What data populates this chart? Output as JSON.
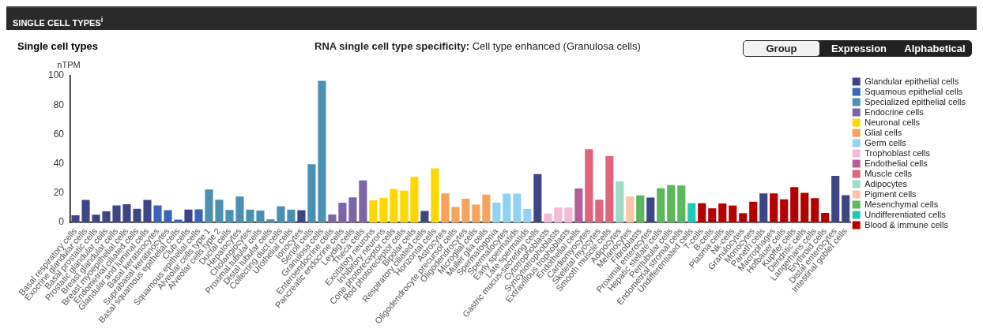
{
  "chart_data": {
    "type": "bar",
    "title": "SINGLE CELL TYPES$^{i}$",
    "subtitle": "RNA single cell type specificity: Cell type enhanced (Granulosa cells)",
    "ylabel": "nTPM",
    "annotations": [
      "Single cell types",
      "Group",
      "Expression",
      "Alphabetical"
    ],
    "categories": [
      "Basal respiratory cells",
      "Exocrine glandular cells",
      "Basal prostatic cells",
      "Prostatic glandular cells",
      "Breast glandular cells",
      "Breast myoepithelial cells",
      "Endometrial ciliated cells",
      "Glandular and luminal cells",
      "Basal keratinocytes",
      "Suprabasal keratinocytes",
      "Basal squamous epithelial cells",
      "Club cells",
      "Squamous epithelial cells",
      "Alveolar cells type 1",
      "Alveolar cells type 2",
      "Ductal cells",
      "Hepatocytes",
      "Cholangiocytes",
      "Proximal tubular cells",
      "Distal tubular cells",
      "Collecting duct cells",
      "Urothelial cells",
      "Ionocytes",
      "Sertoli cells",
      "Granulosa cells",
      "Enteroendocrine cells",
      "Pancreatic endocrine cells",
      "Leydig cells",
      "Theca cells",
      "Excitatory neurons",
      "Inhibitory neurons",
      "Cone photoreceptor cells",
      "Rod photoreceptor cells",
      "Bipolar cells",
      "Respiratory ciliated cells",
      "Horizontal cells",
      "Astrocytes",
      "Oligodendrocyte precursor cells",
      "Oligodendrocytes",
      "Microglial cells",
      "Muller glia cells",
      "Spermatogonia",
      "Spermatocytes",
      "Early spermatids",
      "Late spermatids",
      "Gastric mucus-secreting cells",
      "Cytotrophoblasts",
      "Syncytiotrophoblasts",
      "Extravillous trophoblasts",
      "Endothelial cells",
      "Cardiomyocytes",
      "Skeletal myocytes",
      "Smooth muscle cells",
      "Adipocytes",
      "Melanocytes",
      "Fibroblasts",
      "Proximal enterocytes",
      "Hepatic stellate cells",
      "Peritubular cells",
      "Endometrial stromal cells",
      "Undifferentiated cells",
      "T-cells",
      "B-cells",
      "Plasma cells",
      "Nk-cells",
      "Granulocytes",
      "Monocytes",
      "Paneth cells",
      "Macrophages",
      "Hofbauer cells",
      "Kupffer cells",
      "Dendritic cells",
      "Langerhans cells",
      "Erythroid cells",
      "Distal enterocytes",
      "Intestinal goblet cells"
    ],
    "series": [
      {
        "name": "Glandular epithelial cells",
        "color": "#3d4585",
        "values": [
          4.8,
          15.3,
          5.2,
          7.6,
          11.6,
          12.4,
          9.3,
          15.3,
          null,
          null,
          null,
          8.7,
          null,
          null,
          null,
          null,
          null,
          null,
          null,
          null,
          null,
          null,
          8.3,
          null,
          null,
          null,
          null,
          null,
          null,
          null,
          null,
          null,
          null,
          null,
          7.8,
          null,
          null,
          null,
          null,
          null,
          null,
          null,
          null,
          null,
          null,
          32.9,
          null,
          null,
          null,
          null,
          null,
          null,
          null,
          null,
          null,
          null,
          17.0,
          null,
          null,
          null,
          null,
          null,
          null,
          null,
          null,
          null,
          null,
          19.8,
          null,
          null,
          null,
          null,
          null,
          null,
          31.7,
          18.6
        ]
      },
      {
        "name": "Squamous epithelial cells",
        "color": "#3a64b8",
        "values": [
          null,
          null,
          null,
          null,
          null,
          null,
          null,
          null,
          11.6,
          8.3,
          1.9,
          null,
          8.9,
          null,
          null,
          null,
          null,
          null,
          null,
          null,
          null,
          null,
          null,
          null,
          null,
          null,
          null,
          null,
          null,
          null,
          null,
          null,
          null,
          null,
          null,
          null,
          null,
          null,
          null,
          null,
          null,
          null,
          null,
          null,
          null,
          null,
          null,
          null,
          null,
          null,
          null,
          null,
          null,
          null,
          null,
          null,
          null,
          null,
          null,
          null,
          null,
          null,
          null,
          null,
          null,
          null,
          null,
          null,
          null,
          null,
          null,
          null,
          null,
          null,
          null,
          null
        ]
      },
      {
        "name": "Specialized epithelial cells",
        "color": "#4a90b2",
        "values": [
          null,
          null,
          null,
          null,
          null,
          null,
          null,
          null,
          null,
          null,
          null,
          null,
          null,
          22.5,
          15.5,
          8.5,
          17.6,
          8.7,
          8.1,
          2.1,
          11.0,
          8.7,
          null,
          39.7,
          96.5,
          null,
          null,
          null,
          null,
          null,
          null,
          null,
          null,
          null,
          null,
          null,
          null,
          null,
          null,
          null,
          null,
          null,
          null,
          null,
          null,
          null,
          null,
          null,
          null,
          null,
          null,
          null,
          null,
          null,
          null,
          null,
          null,
          null,
          null,
          null,
          null,
          null,
          null,
          null,
          null,
          null,
          null,
          null,
          null,
          null,
          null,
          null,
          null,
          null,
          null,
          null
        ]
      },
      {
        "name": "Endocrine cells",
        "color": "#7b65a8",
        "values": [
          null,
          null,
          null,
          null,
          null,
          null,
          null,
          null,
          null,
          null,
          null,
          null,
          null,
          null,
          null,
          null,
          null,
          null,
          null,
          null,
          null,
          null,
          null,
          null,
          null,
          5.4,
          13.4,
          17.1,
          28.7,
          null,
          null,
          null,
          null,
          null,
          null,
          null,
          null,
          null,
          null,
          null,
          null,
          null,
          null,
          null,
          null,
          null,
          null,
          null,
          null,
          null,
          null,
          null,
          null,
          null,
          null,
          null,
          null,
          null,
          null,
          null,
          null,
          null,
          null,
          null,
          null,
          null,
          null,
          null,
          null,
          null,
          null,
          null,
          null,
          null,
          null,
          null
        ]
      },
      {
        "name": "Neuronal cells",
        "color": "#ffd700",
        "values": [
          null,
          null,
          null,
          null,
          null,
          null,
          null,
          null,
          null,
          null,
          null,
          null,
          null,
          null,
          null,
          null,
          null,
          null,
          null,
          null,
          null,
          null,
          null,
          null,
          null,
          null,
          null,
          null,
          null,
          15.1,
          16.8,
          22.7,
          21.7,
          31.1,
          null,
          36.8,
          null,
          null,
          null,
          null,
          null,
          null,
          null,
          null,
          null,
          null,
          null,
          null,
          null,
          null,
          null,
          null,
          null,
          null,
          null,
          null,
          null,
          null,
          null,
          null,
          null,
          null,
          null,
          null,
          null,
          null,
          null,
          null,
          null,
          null,
          null,
          null,
          null,
          null,
          null,
          null
        ]
      },
      {
        "name": "Glial cells",
        "color": "#f7a35c",
        "values": [
          null,
          null,
          null,
          null,
          null,
          null,
          null,
          null,
          null,
          null,
          null,
          null,
          null,
          null,
          null,
          null,
          null,
          null,
          null,
          null,
          null,
          null,
          null,
          null,
          null,
          null,
          null,
          null,
          null,
          null,
          null,
          null,
          null,
          null,
          null,
          null,
          19.8,
          10.6,
          16.2,
          12.1,
          19.0,
          null,
          null,
          null,
          null,
          null,
          null,
          null,
          null,
          null,
          null,
          null,
          null,
          null,
          null,
          null,
          null,
          null,
          null,
          null,
          null,
          null,
          null,
          null,
          null,
          null,
          null,
          null,
          null,
          null,
          null,
          null,
          null,
          null,
          null,
          null
        ]
      },
      {
        "name": "Germ cells",
        "color": "#8fd2f3",
        "values": [
          null,
          null,
          null,
          null,
          null,
          null,
          null,
          null,
          null,
          null,
          null,
          null,
          null,
          null,
          null,
          null,
          null,
          null,
          null,
          null,
          null,
          null,
          null,
          null,
          null,
          null,
          null,
          null,
          null,
          null,
          null,
          null,
          null,
          null,
          null,
          null,
          null,
          null,
          null,
          null,
          null,
          13.5,
          19.6,
          19.6,
          9.2,
          null,
          null,
          null,
          null,
          null,
          null,
          null,
          null,
          null,
          null,
          null,
          null,
          null,
          null,
          null,
          null,
          null,
          null,
          null,
          null,
          null,
          null,
          null,
          null,
          null,
          null,
          null,
          null,
          null,
          null,
          null
        ]
      },
      {
        "name": "Trophoblast cells",
        "color": "#f6b8d6",
        "values": [
          null,
          null,
          null,
          null,
          null,
          null,
          null,
          null,
          null,
          null,
          null,
          null,
          null,
          null,
          null,
          null,
          null,
          null,
          null,
          null,
          null,
          null,
          null,
          null,
          null,
          null,
          null,
          null,
          null,
          null,
          null,
          null,
          null,
          null,
          null,
          null,
          null,
          null,
          null,
          null,
          null,
          null,
          null,
          null,
          null,
          null,
          6.1,
          10.2,
          10.2,
          null,
          null,
          null,
          null,
          null,
          null,
          null,
          null,
          null,
          null,
          null,
          null,
          null,
          null,
          null,
          null,
          null,
          null,
          null,
          null,
          null,
          null,
          null,
          null,
          null,
          null,
          null
        ]
      },
      {
        "name": "Endothelial cells",
        "color": "#b1609b",
        "values": [
          null,
          null,
          null,
          null,
          null,
          null,
          null,
          null,
          null,
          null,
          null,
          null,
          null,
          null,
          null,
          null,
          null,
          null,
          null,
          null,
          null,
          null,
          null,
          null,
          null,
          null,
          null,
          null,
          null,
          null,
          null,
          null,
          null,
          null,
          null,
          null,
          null,
          null,
          null,
          null,
          null,
          null,
          null,
          null,
          null,
          null,
          null,
          null,
          null,
          23.1,
          null,
          null,
          null,
          null,
          null,
          null,
          null,
          null,
          null,
          null,
          null,
          null,
          null,
          null,
          null,
          null,
          null,
          null,
          null,
          null,
          null,
          null,
          null,
          null,
          null,
          null
        ]
      },
      {
        "name": "Muscle cells",
        "color": "#e0647a",
        "values": [
          null,
          null,
          null,
          null,
          null,
          null,
          null,
          null,
          null,
          null,
          null,
          null,
          null,
          null,
          null,
          null,
          null,
          null,
          null,
          null,
          null,
          null,
          null,
          null,
          null,
          null,
          null,
          null,
          null,
          null,
          null,
          null,
          null,
          null,
          null,
          null,
          null,
          null,
          null,
          null,
          null,
          null,
          null,
          null,
          null,
          null,
          null,
          null,
          null,
          null,
          49.9,
          15.5,
          45.2,
          null,
          null,
          null,
          null,
          null,
          null,
          null,
          null,
          null,
          null,
          null,
          null,
          null,
          null,
          null,
          null,
          null,
          null,
          null,
          null,
          null,
          null,
          null
        ]
      },
      {
        "name": "Adipocytes",
        "color": "#9fdac8",
        "values": [
          null,
          null,
          null,
          null,
          null,
          null,
          null,
          null,
          null,
          null,
          null,
          null,
          null,
          null,
          null,
          null,
          null,
          null,
          null,
          null,
          null,
          null,
          null,
          null,
          null,
          null,
          null,
          null,
          null,
          null,
          null,
          null,
          null,
          null,
          null,
          null,
          null,
          null,
          null,
          null,
          null,
          null,
          null,
          null,
          null,
          null,
          null,
          null,
          null,
          null,
          null,
          null,
          null,
          28.0,
          null,
          null,
          null,
          null,
          null,
          null,
          null,
          null,
          null,
          null,
          null,
          null,
          null,
          null,
          null,
          null,
          null,
          null,
          null,
          null,
          null,
          null
        ]
      },
      {
        "name": "Pigment cells",
        "color": "#fcc4a6",
        "values": [
          null,
          null,
          null,
          null,
          null,
          null,
          null,
          null,
          null,
          null,
          null,
          null,
          null,
          null,
          null,
          null,
          null,
          null,
          null,
          null,
          null,
          null,
          null,
          null,
          null,
          null,
          null,
          null,
          null,
          null,
          null,
          null,
          null,
          null,
          null,
          null,
          null,
          null,
          null,
          null,
          null,
          null,
          null,
          null,
          null,
          null,
          null,
          null,
          null,
          null,
          null,
          null,
          null,
          null,
          17.6,
          null,
          null,
          null,
          null,
          null,
          null,
          null,
          null,
          null,
          null,
          null,
          null,
          null,
          null,
          null,
          null,
          null,
          null,
          null,
          null,
          null
        ]
      },
      {
        "name": "Mesenchymal cells",
        "color": "#5cb85c",
        "values": [
          null,
          null,
          null,
          null,
          null,
          null,
          null,
          null,
          null,
          null,
          null,
          null,
          null,
          null,
          null,
          null,
          null,
          null,
          null,
          null,
          null,
          null,
          null,
          null,
          null,
          null,
          null,
          null,
          null,
          null,
          null,
          null,
          null,
          null,
          null,
          null,
          null,
          null,
          null,
          null,
          null,
          null,
          null,
          null,
          null,
          null,
          null,
          null,
          null,
          null,
          null,
          null,
          null,
          null,
          null,
          18.4,
          null,
          23.3,
          25.4,
          25.2,
          null,
          null,
          null,
          null,
          null,
          null,
          null,
          null,
          null,
          null,
          null,
          null,
          null,
          null,
          null,
          null
        ]
      },
      {
        "name": "Undifferentiated cells",
        "color": "#1fc9b6",
        "values": [
          null,
          null,
          null,
          null,
          null,
          null,
          null,
          null,
          null,
          null,
          null,
          null,
          null,
          null,
          null,
          null,
          null,
          null,
          null,
          null,
          null,
          null,
          null,
          null,
          null,
          null,
          null,
          null,
          null,
          null,
          null,
          null,
          null,
          null,
          null,
          null,
          null,
          null,
          null,
          null,
          null,
          null,
          null,
          null,
          null,
          null,
          null,
          null,
          null,
          null,
          null,
          null,
          null,
          null,
          null,
          null,
          null,
          null,
          null,
          null,
          13.1,
          null,
          null,
          null,
          null,
          null,
          null,
          null,
          null,
          null,
          null,
          null,
          null,
          null,
          null,
          null
        ]
      },
      {
        "name": "Blood & immune cells",
        "color": "#b50000",
        "values": [
          null,
          null,
          null,
          null,
          null,
          null,
          null,
          null,
          null,
          null,
          null,
          null,
          null,
          null,
          null,
          null,
          null,
          null,
          null,
          null,
          null,
          null,
          null,
          null,
          null,
          null,
          null,
          null,
          null,
          null,
          null,
          null,
          null,
          null,
          null,
          null,
          null,
          null,
          null,
          null,
          null,
          null,
          null,
          null,
          null,
          null,
          null,
          null,
          null,
          null,
          null,
          null,
          null,
          null,
          null,
          null,
          null,
          null,
          null,
          null,
          null,
          13.1,
          9.6,
          12.9,
          11.5,
          6.3,
          14.1,
          null,
          19.8,
          15.7,
          24.1,
          20.2,
          16.6,
          6.5,
          null,
          null
        ]
      }
    ],
    "ylim": [
      0,
      100
    ],
    "yticks": [
      0,
      20,
      40,
      60,
      80,
      100
    ],
    "grid": false,
    "legend": "right"
  }
}
